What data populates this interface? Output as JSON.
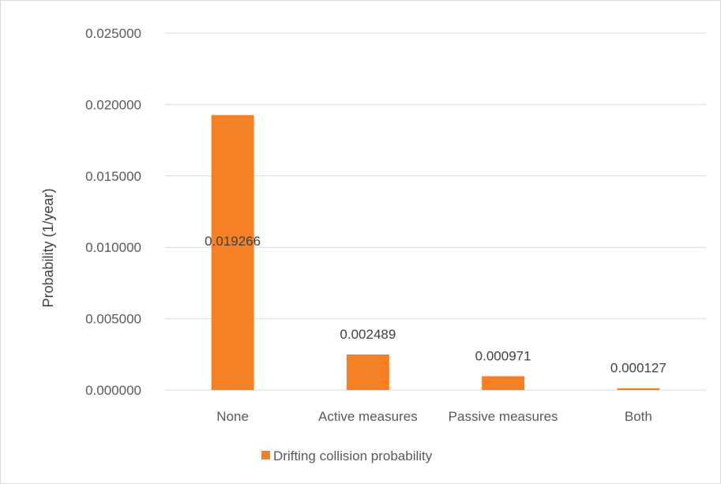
{
  "chart_data": {
    "type": "bar",
    "categories": [
      "None",
      "Active measures",
      "Passive measures",
      "Both"
    ],
    "series": [
      {
        "name": "Drifting collision probability",
        "values": [
          0.019266,
          0.002489,
          0.000971,
          0.000127
        ],
        "color": "#f58025"
      }
    ],
    "data_labels": [
      "0.019266",
      "0.002489",
      "0.000971",
      "0.000127"
    ],
    "ylabel": "Probability (1/year)",
    "xlabel": "",
    "ylim": [
      0,
      0.025
    ],
    "yticks": [
      0,
      0.005,
      0.01,
      0.015,
      0.02,
      0.025
    ],
    "ytick_labels": [
      "0.000000",
      "0.005000",
      "0.010000",
      "0.015000",
      "0.020000",
      "0.025000"
    ],
    "grid": true,
    "gridline_color": "#d9d9d9",
    "legend_position": "bottom"
  }
}
